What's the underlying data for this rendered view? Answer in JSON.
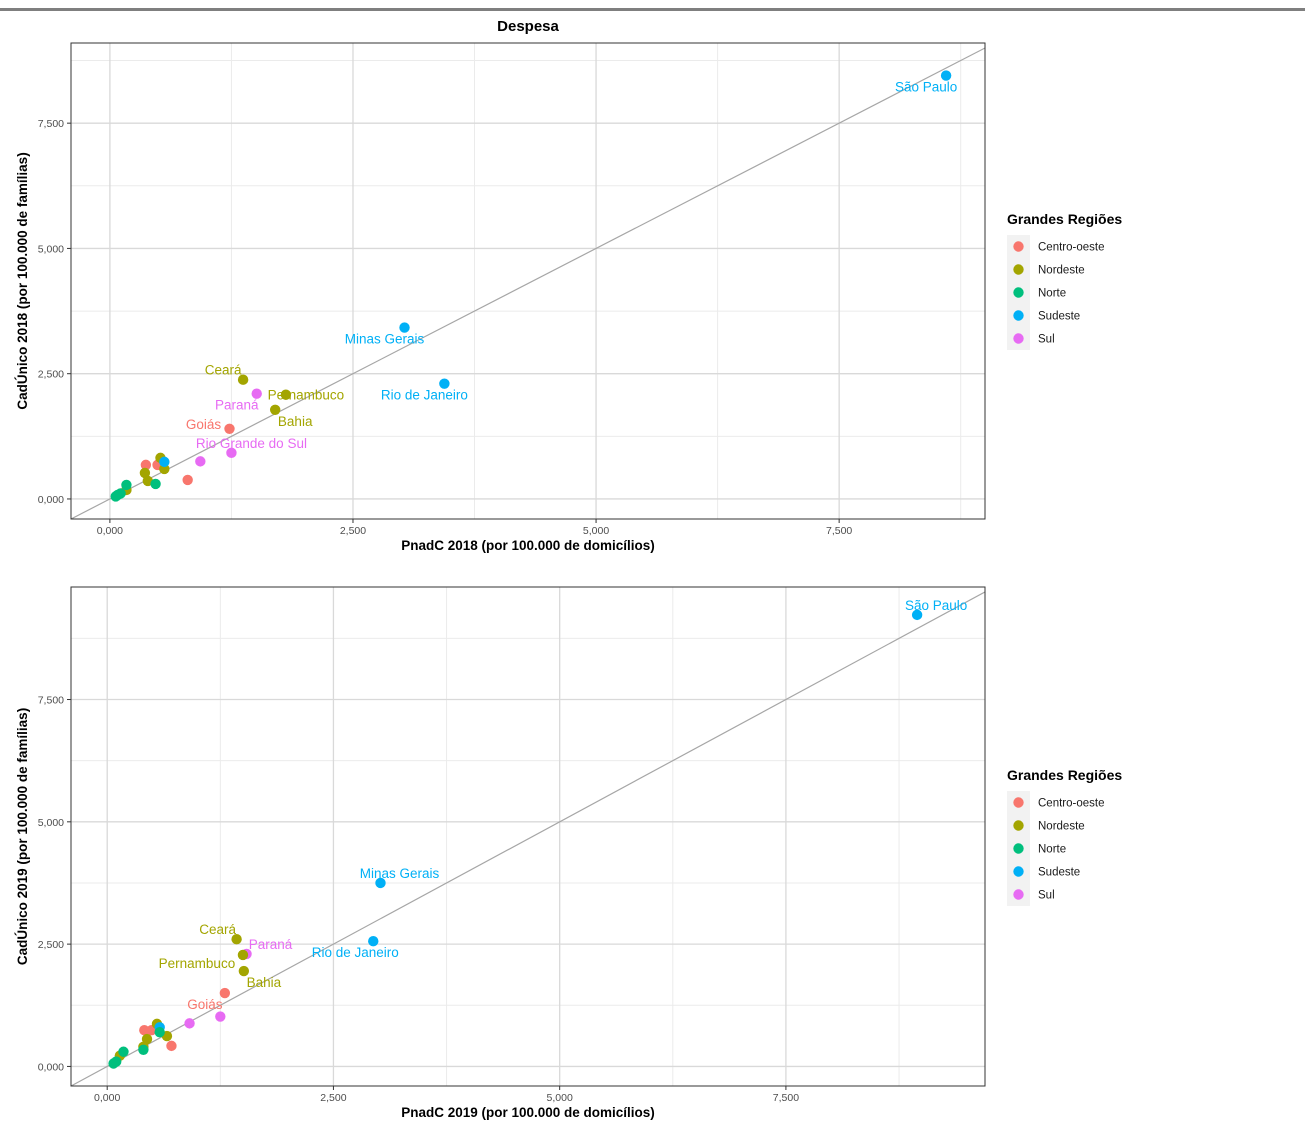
{
  "figure_title": "Despesa",
  "colors": {
    "Centro-oeste": "#F8766D",
    "Nordeste": "#A3A500",
    "Norte": "#00BF7D",
    "Sudeste": "#00B0F6",
    "Sul": "#E76BF3"
  },
  "chart_data": [
    {
      "type": "scatter",
      "title": "Despesa",
      "xlabel": "PnadC 2018 (por 100.000 de domicílios)",
      "ylabel": "CadÚnico 2018 (por 100.000 de famílias)",
      "xlim": [
        -400,
        9000
      ],
      "ylim": [
        -400,
        9100
      ],
      "x_ticks": [
        0,
        2500,
        5000,
        7500
      ],
      "x_tick_labels": [
        "0,000",
        "2,500",
        "5,000",
        "7,500"
      ],
      "y_ticks": [
        0,
        2500,
        5000,
        7500
      ],
      "y_tick_labels": [
        "0,000",
        "2,500",
        "5,000",
        "7,500"
      ],
      "reference_line": "y = x",
      "grid": true,
      "legend": {
        "title": "Grandes Regiões",
        "position": "right",
        "items": [
          "Centro-oeste",
          "Nordeste",
          "Norte",
          "Sudeste",
          "Sul"
        ]
      },
      "points": [
        {
          "x": 8600,
          "y": 8450,
          "region": "Sudeste",
          "label": "São Paulo"
        },
        {
          "x": 3030,
          "y": 3420,
          "region": "Sudeste",
          "label": "Minas Gerais"
        },
        {
          "x": 3440,
          "y": 2300,
          "region": "Sudeste",
          "label": "Rio de Janeiro"
        },
        {
          "x": 1370,
          "y": 2380,
          "region": "Nordeste",
          "label": "Ceará"
        },
        {
          "x": 1810,
          "y": 2080,
          "region": "Nordeste",
          "label": "Pernambuco"
        },
        {
          "x": 1510,
          "y": 2100,
          "region": "Sul",
          "label": "Paraná"
        },
        {
          "x": 1700,
          "y": 1780,
          "region": "Nordeste",
          "label": "Bahia"
        },
        {
          "x": 1230,
          "y": 1400,
          "region": "Centro-oeste",
          "label": "Goiás"
        },
        {
          "x": 1250,
          "y": 920,
          "region": "Sul",
          "label": "Rio Grande do Sul"
        },
        {
          "x": 930,
          "y": 750,
          "region": "Sul"
        },
        {
          "x": 800,
          "y": 380,
          "region": "Centro-oeste"
        },
        {
          "x": 370,
          "y": 680,
          "region": "Centro-oeste"
        },
        {
          "x": 490,
          "y": 680,
          "region": "Centro-oeste"
        },
        {
          "x": 520,
          "y": 820,
          "region": "Nordeste"
        },
        {
          "x": 360,
          "y": 520,
          "region": "Nordeste"
        },
        {
          "x": 390,
          "y": 360,
          "region": "Nordeste"
        },
        {
          "x": 560,
          "y": 600,
          "region": "Nordeste"
        },
        {
          "x": 170,
          "y": 180,
          "region": "Nordeste"
        },
        {
          "x": 560,
          "y": 740,
          "region": "Sudeste"
        },
        {
          "x": 170,
          "y": 280,
          "region": "Norte"
        },
        {
          "x": 470,
          "y": 300,
          "region": "Norte"
        },
        {
          "x": 80,
          "y": 80,
          "region": "Norte"
        },
        {
          "x": 110,
          "y": 110,
          "region": "Norte"
        },
        {
          "x": 60,
          "y": 50,
          "region": "Norte"
        }
      ]
    },
    {
      "type": "scatter",
      "title": "",
      "xlabel": "PnadC 2019 (por 100.000 de domicílios)",
      "ylabel": "CadÚnico 2019 (por 100.000 de famílias)",
      "xlim": [
        -400,
        9700
      ],
      "ylim": [
        -400,
        9800
      ],
      "x_ticks": [
        0,
        2500,
        5000,
        7500
      ],
      "x_tick_labels": [
        "0,000",
        "2,500",
        "5,000",
        "7,500"
      ],
      "y_ticks": [
        0,
        2500,
        5000,
        7500
      ],
      "y_tick_labels": [
        "0,000",
        "2,500",
        "5,000",
        "7,500"
      ],
      "reference_line": "y = x",
      "grid": true,
      "legend": {
        "title": "Grandes Regiões",
        "position": "right",
        "items": [
          "Centro-oeste",
          "Nordeste",
          "Norte",
          "Sudeste",
          "Sul"
        ]
      },
      "points": [
        {
          "x": 8950,
          "y": 9230,
          "region": "Sudeste",
          "label": "São Paulo"
        },
        {
          "x": 3020,
          "y": 3750,
          "region": "Sudeste",
          "label": "Minas Gerais"
        },
        {
          "x": 2940,
          "y": 2560,
          "region": "Sudeste",
          "label": "Rio de Janeiro"
        },
        {
          "x": 1430,
          "y": 2600,
          "region": "Nordeste",
          "label": "Ceará"
        },
        {
          "x": 1540,
          "y": 2300,
          "region": "Sul",
          "label": "Paraná"
        },
        {
          "x": 1500,
          "y": 2280,
          "region": "Nordeste",
          "label": "Pernambuco"
        },
        {
          "x": 1510,
          "y": 1950,
          "region": "Nordeste",
          "label": "Bahia"
        },
        {
          "x": 1300,
          "y": 1500,
          "region": "Centro-oeste",
          "label": "Goiás"
        },
        {
          "x": 1250,
          "y": 1020,
          "region": "Sul"
        },
        {
          "x": 910,
          "y": 880,
          "region": "Sul"
        },
        {
          "x": 710,
          "y": 420,
          "region": "Centro-oeste"
        },
        {
          "x": 410,
          "y": 740,
          "region": "Centro-oeste"
        },
        {
          "x": 490,
          "y": 740,
          "region": "Centro-oeste"
        },
        {
          "x": 550,
          "y": 870,
          "region": "Nordeste"
        },
        {
          "x": 660,
          "y": 620,
          "region": "Nordeste"
        },
        {
          "x": 440,
          "y": 560,
          "region": "Nordeste"
        },
        {
          "x": 400,
          "y": 400,
          "region": "Nordeste"
        },
        {
          "x": 140,
          "y": 220,
          "region": "Nordeste"
        },
        {
          "x": 580,
          "y": 800,
          "region": "Sudeste"
        },
        {
          "x": 580,
          "y": 700,
          "region": "Norte"
        },
        {
          "x": 180,
          "y": 300,
          "region": "Norte"
        },
        {
          "x": 400,
          "y": 340,
          "region": "Norte"
        },
        {
          "x": 100,
          "y": 100,
          "region": "Norte"
        },
        {
          "x": 70,
          "y": 60,
          "region": "Norte"
        }
      ]
    }
  ]
}
